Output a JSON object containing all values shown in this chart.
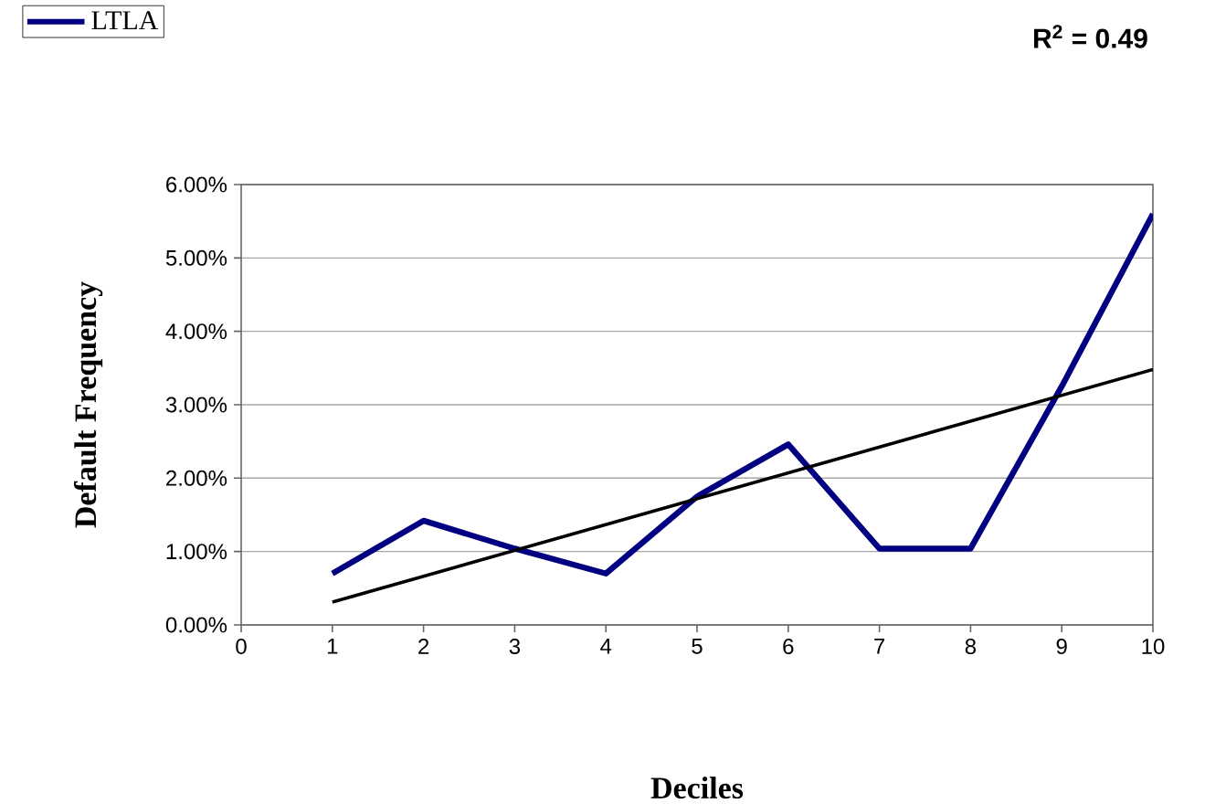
{
  "chart_data": {
    "type": "line",
    "xlabel": "Deciles",
    "ylabel": "Default Frequency",
    "annotations": [
      "**R$^{2}$ = 0.49**"
    ],
    "xlim": [
      0,
      10
    ],
    "xticks": [
      0,
      1,
      2,
      3,
      4,
      5,
      6,
      7,
      8,
      9,
      10
    ],
    "ylim": [
      0,
      6
    ],
    "yticks": [
      {
        "value": 0,
        "label": "0.00%"
      },
      {
        "value": 1,
        "label": "1.00%"
      },
      {
        "value": 2,
        "label": "2.00%"
      },
      {
        "value": 3,
        "label": "3.00%"
      },
      {
        "value": 4,
        "label": "4.00%"
      },
      {
        "value": 5,
        "label": "5.00%"
      },
      {
        "value": 6,
        "label": "6.00%"
      }
    ],
    "grid": "y",
    "legend": "top left",
    "series": [
      {
        "name": "LTLA",
        "color": "#000080",
        "x": [
          1,
          2,
          3,
          4,
          5,
          6,
          7,
          8,
          9,
          10
        ],
        "values": [
          0.7,
          1.42,
          1.04,
          0.7,
          1.75,
          2.46,
          1.04,
          1.04,
          3.25,
          5.6
        ]
      },
      {
        "type": "line",
        "color": "#000000",
        "x": [
          1,
          10
        ],
        "values": [
          0.31,
          3.48
        ]
      }
    ]
  }
}
